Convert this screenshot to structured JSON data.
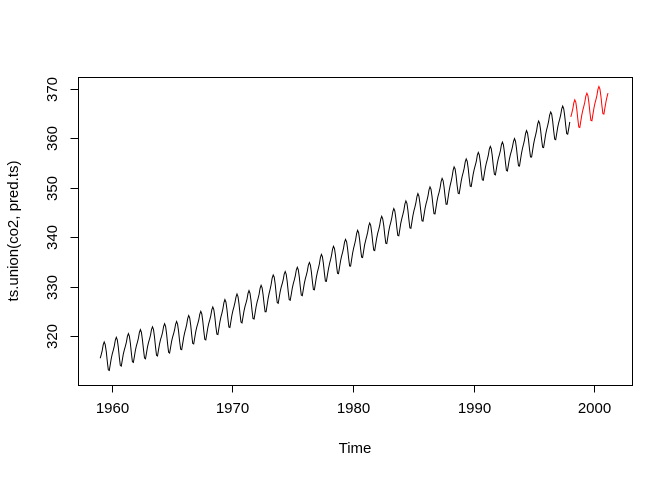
{
  "window": {
    "background": "#ffffff"
  },
  "chart_data": {
    "type": "line",
    "title": "",
    "xlabel": "Time",
    "ylabel": "ts.union(co2, pred.ts)",
    "xlim": [
      1957.2,
      2003.2
    ],
    "ylim": [
      310.1,
      372.4
    ],
    "x_ticks": [
      1960,
      1970,
      1980,
      1990,
      2000
    ],
    "y_ticks": [
      320,
      330,
      340,
      350,
      360,
      370
    ],
    "grid": false,
    "legend": "none",
    "axis_color": "#000000",
    "text_color": "#000000",
    "frequency": "monthly",
    "seasonal_offsets": [
      -0.05,
      0.6,
      1.35,
      2.45,
      2.95,
      2.35,
      0.8,
      -1.25,
      -3.0,
      -3.2,
      -2.05,
      -0.9
    ],
    "series": [
      {
        "name": "co2",
        "color": "#000000",
        "start_year": 1959,
        "n_months": 468,
        "annual_means": [
          315.98,
          316.91,
          317.64,
          318.45,
          318.99,
          319.62,
          320.04,
          321.38,
          322.16,
          323.04,
          324.62,
          325.68,
          326.32,
          327.45,
          329.68,
          330.18,
          331.08,
          332.05,
          333.78,
          335.41,
          336.78,
          338.68,
          340.1,
          341.44,
          343.03,
          344.58,
          346.04,
          347.39,
          349.16,
          351.56,
          353.07,
          354.35,
          355.57,
          356.38,
          357.07,
          358.82,
          360.8,
          362.59,
          363.71
        ]
      },
      {
        "name": "pred.ts",
        "color": "#ff0000",
        "start_year": 1998,
        "n_months": 38,
        "annual_means": [
          365.0,
          366.35,
          367.7,
          369.05
        ]
      }
    ]
  }
}
